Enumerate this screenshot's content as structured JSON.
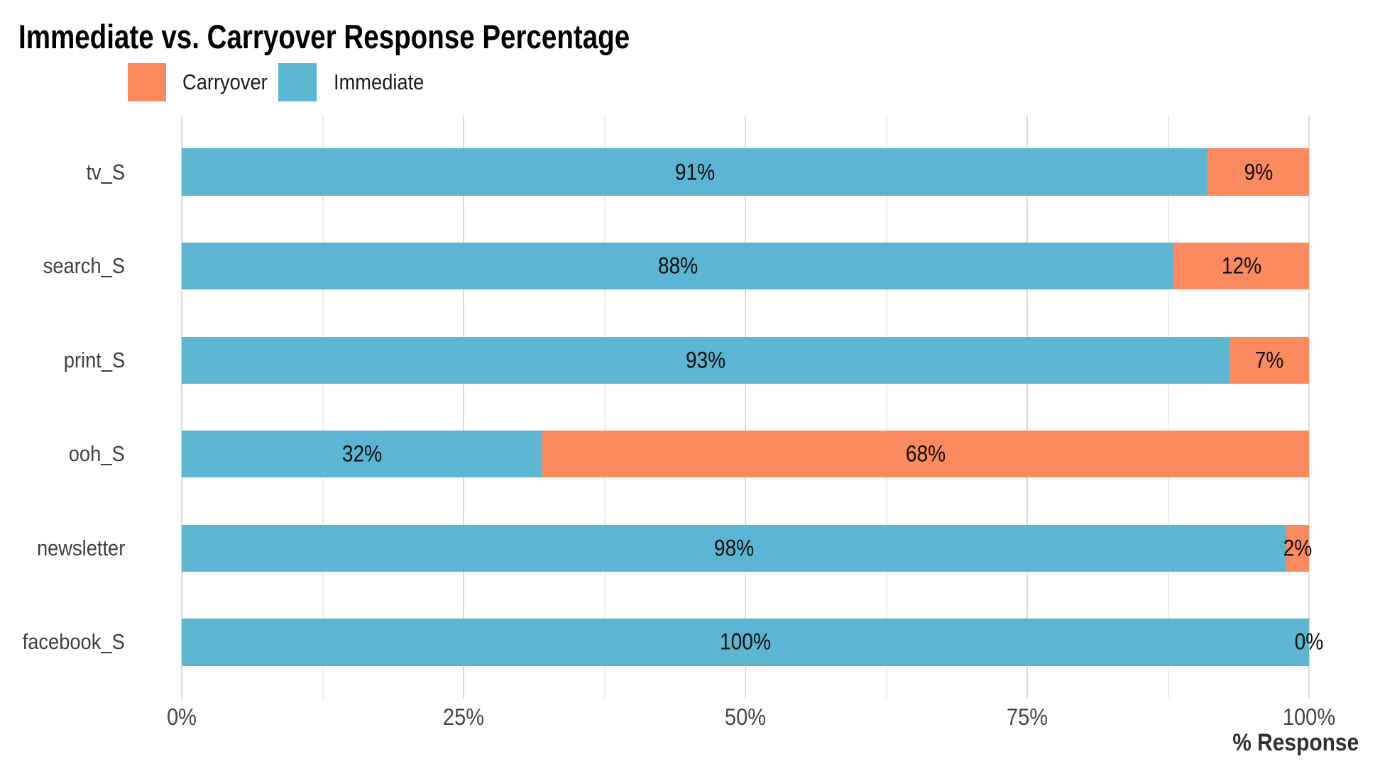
{
  "title": "Immediate vs. Carryover Response Percentage",
  "legend": {
    "items": [
      {
        "name": "carryover",
        "label": "Carryover",
        "color": "#FC8A5F"
      },
      {
        "name": "immediate",
        "label": "Immediate",
        "color": "#5CB5D2"
      }
    ]
  },
  "axis": {
    "x_label": "% Response",
    "x_ticks": [
      "0%",
      "25%",
      "50%",
      "75%",
      "100%"
    ]
  },
  "chart_data": {
    "type": "bar",
    "orientation": "horizontal",
    "stacked": true,
    "title": "Immediate vs. Carryover Response Percentage",
    "categories": [
      "tv_S",
      "search_S",
      "print_S",
      "ooh_S",
      "newsletter",
      "facebook_S"
    ],
    "series": [
      {
        "name": "Immediate",
        "color": "#5CB5D2",
        "values": [
          91,
          88,
          93,
          32,
          98,
          100
        ],
        "labels": [
          "91%",
          "88%",
          "93%",
          "32%",
          "98%",
          "100%"
        ]
      },
      {
        "name": "Carryover",
        "color": "#FC8A5F",
        "values": [
          9,
          12,
          7,
          68,
          2,
          0
        ],
        "labels": [
          "9%",
          "12%",
          "7%",
          "68%",
          "2%",
          "0%"
        ]
      }
    ],
    "xlabel": "% Response",
    "xlim": [
      0,
      100
    ],
    "x_major_ticks": [
      0,
      25,
      50,
      75,
      100
    ],
    "x_minor_step": 12.5,
    "grid": true,
    "legend_position": "top"
  }
}
